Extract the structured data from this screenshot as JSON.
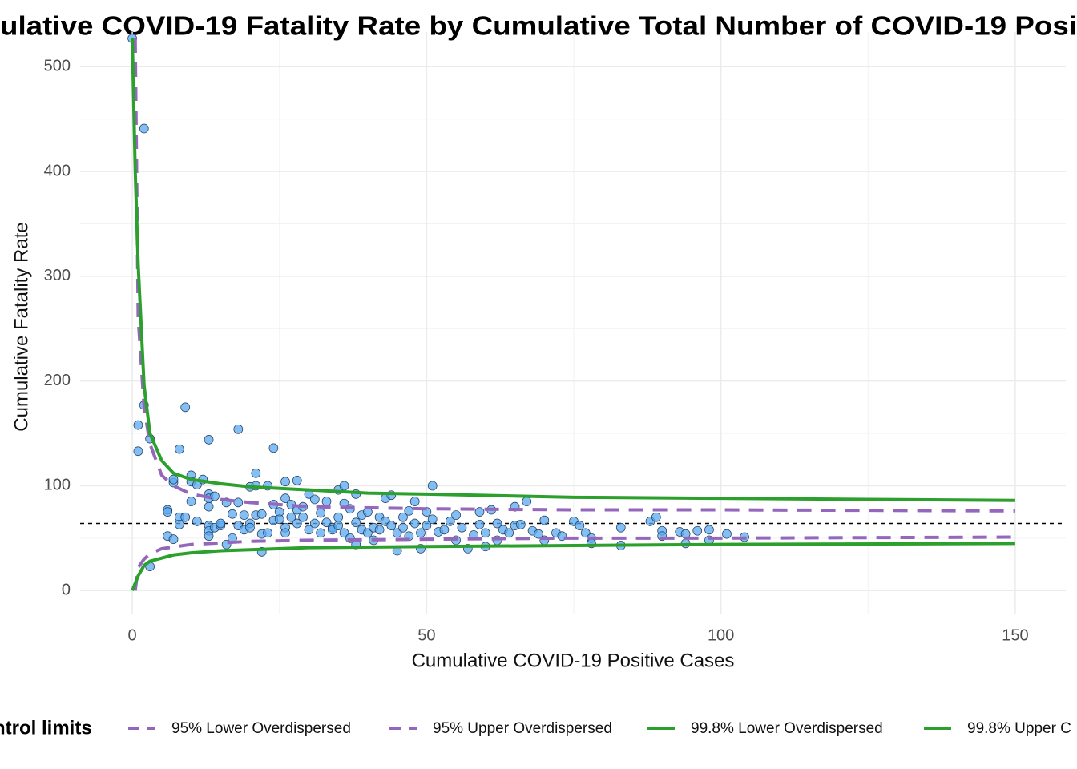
{
  "chart_data": {
    "type": "scatter",
    "title": "ulative COVID-19 Fatality Rate by Cumulative Total Number of COVID-19 Posi",
    "x_label": "Cumulative COVID-19 Positive Cases",
    "y_label": "Cumulative Fatality Rate",
    "legend_title": "ntrol limits",
    "xlim": [
      -7.5,
      157.5
    ],
    "xticks": [
      0,
      50,
      100,
      150
    ],
    "x_minor_grid": [
      25,
      75,
      125
    ],
    "ylim": [
      -22,
      527
    ],
    "yticks": [
      0,
      100,
      200,
      300,
      400,
      500
    ],
    "y_minor_grid": [
      50,
      150,
      250,
      350,
      450
    ],
    "grid": true,
    "reference_line": {
      "value": 64,
      "color": "#000000"
    },
    "points": {
      "color": "#5aaaf0",
      "stroke": "#1f3a5a",
      "x": [
        0,
        2,
        1,
        1,
        2,
        3,
        3,
        6,
        6,
        6,
        7,
        7,
        7,
        8,
        8,
        8,
        9,
        9,
        10,
        10,
        10,
        11,
        11,
        12,
        13,
        13,
        13,
        13,
        13,
        13,
        13,
        14,
        14,
        15,
        15,
        16,
        16,
        17,
        17,
        18,
        18,
        18,
        19,
        19,
        20,
        20,
        20,
        21,
        21,
        21,
        22,
        22,
        22,
        23,
        23,
        24,
        24,
        24,
        25,
        25,
        26,
        26,
        26,
        26,
        27,
        27,
        28,
        28,
        28,
        29,
        29,
        30,
        30,
        31,
        31,
        32,
        32,
        33,
        33,
        34,
        34,
        35,
        35,
        35,
        36,
        36,
        36,
        37,
        37,
        38,
        38,
        38,
        39,
        39,
        40,
        40,
        41,
        41,
        42,
        42,
        43,
        43,
        44,
        44,
        45,
        45,
        46,
        46,
        47,
        47,
        48,
        48,
        49,
        49,
        50,
        50,
        51,
        51,
        52,
        53,
        54,
        55,
        55,
        56,
        57,
        58,
        59,
        59,
        60,
        60,
        61,
        62,
        62,
        63,
        64,
        65,
        65,
        66,
        67,
        68,
        69,
        70,
        70,
        72,
        73,
        75,
        76,
        77,
        78,
        78,
        83,
        83,
        88,
        89,
        90,
        90,
        93,
        94,
        94,
        96,
        98,
        98,
        101,
        104
      ],
      "values": [
        527,
        441,
        158,
        133,
        177,
        145,
        23,
        77,
        75,
        52,
        49,
        103,
        106,
        135,
        70,
        63,
        175,
        70,
        110,
        104,
        85,
        101,
        66,
        106,
        144,
        92,
        88,
        80,
        62,
        57,
        52,
        90,
        60,
        62,
        64,
        84,
        44,
        73,
        50,
        154,
        84,
        62,
        72,
        58,
        64,
        60,
        99,
        112,
        72,
        100,
        54,
        37,
        73,
        100,
        55,
        136,
        82,
        67,
        75,
        68,
        104,
        88,
        60,
        55,
        82,
        70,
        105,
        77,
        64,
        80,
        70,
        58,
        92,
        87,
        64,
        74,
        55,
        85,
        65,
        60,
        58,
        96,
        70,
        62,
        100,
        83,
        55,
        78,
        50,
        92,
        65,
        44,
        72,
        58,
        75,
        55,
        60,
        48,
        70,
        58,
        88,
        66,
        91,
        62,
        55,
        38,
        70,
        60,
        76,
        52,
        85,
        64,
        55,
        40,
        75,
        62,
        68,
        100,
        56,
        58,
        66,
        72,
        48,
        60,
        40,
        53,
        75,
        63,
        55,
        42,
        77,
        64,
        48,
        58,
        55,
        80,
        62,
        63,
        85,
        57,
        54,
        67,
        48,
        55,
        52,
        66,
        62,
        55,
        50,
        45,
        60,
        43,
        66,
        70,
        57,
        52,
        56,
        54,
        45,
        57,
        58,
        48,
        54,
        51
      ]
    },
    "series": [
      {
        "name": "95% Lower Overdispersed",
        "color": "#9467bd",
        "dash": true,
        "x": [
          0.5,
          1,
          2,
          3,
          5,
          10,
          20,
          30,
          50,
          75,
          100,
          150
        ],
        "values": [
          0,
          22,
          30,
          35,
          40,
          44,
          47,
          48,
          49,
          50,
          50,
          51
        ]
      },
      {
        "name": "95% Upper Overdispersed",
        "color": "#9467bd",
        "dash": true,
        "x": [
          0.5,
          1,
          2,
          3,
          5,
          7,
          10,
          15,
          20,
          30,
          50,
          75,
          100,
          150
        ],
        "values": [
          527,
          260,
          175,
          140,
          110,
          100,
          92,
          87,
          84,
          80,
          78,
          77,
          77,
          76
        ]
      },
      {
        "name": "99.8% Lower Overdispersed",
        "color": "#2ca02c",
        "dash": false,
        "x": [
          0,
          1,
          2,
          3,
          5,
          7,
          10,
          15,
          20,
          30,
          50,
          75,
          100,
          150
        ],
        "values": [
          0,
          14,
          24,
          28,
          31,
          34,
          36,
          38,
          39,
          41,
          42,
          43,
          44,
          45
        ]
      },
      {
        "name": "99.8% Upper C",
        "color": "#2ca02c",
        "dash": false,
        "x": [
          0,
          0.5,
          1,
          2,
          3,
          5,
          7,
          10,
          15,
          20,
          30,
          40,
          50,
          75,
          100,
          125,
          150
        ],
        "values": [
          527,
          400,
          311,
          196,
          150,
          124,
          112,
          106,
          102,
          99,
          96,
          93,
          92,
          89,
          88,
          87,
          86
        ]
      }
    ]
  }
}
